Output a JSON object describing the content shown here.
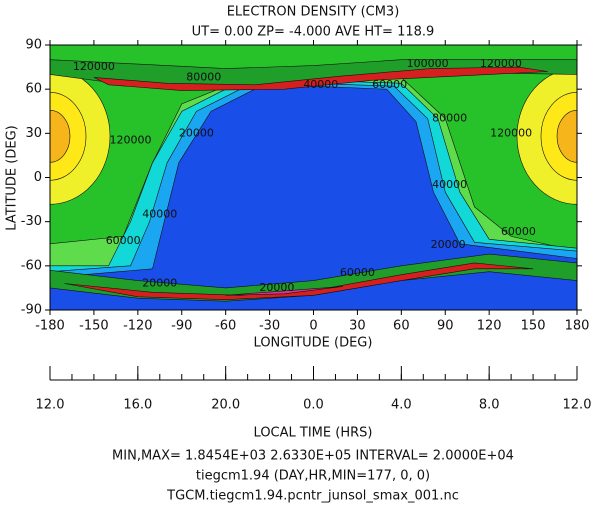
{
  "chart_data": {
    "type": "contour",
    "title": "ELECTRON DENSITY (CM3)",
    "subtitle": "UT= 0.00 ZP= -4.000 AVE HT= 118.9",
    "x_label": "LONGITUDE (DEG)",
    "y_label": "LATITUDE (DEG)",
    "xlim": [
      -180,
      180
    ],
    "ylim": [
      -90,
      90
    ],
    "xticks": [
      -180,
      -150,
      -120,
      -90,
      -60,
      -30,
      0,
      30,
      60,
      90,
      120,
      150,
      180
    ],
    "yticks": [
      -90,
      -60,
      -30,
      0,
      30,
      60,
      90
    ],
    "lt_label": "LOCAL TIME (HRS)",
    "lt_ticks": [
      {
        "value": -180,
        "label": "12.0"
      },
      {
        "value": -120,
        "label": "16.0"
      },
      {
        "value": -60,
        "label": "20.0"
      },
      {
        "value": 0,
        "label": "0.0"
      },
      {
        "value": 60,
        "label": "4.0"
      },
      {
        "value": 120,
        "label": "8.0"
      },
      {
        "value": 180,
        "label": "12.0"
      }
    ],
    "contour_labels": [
      {
        "value": 120000,
        "lon": -150,
        "lat": 75
      },
      {
        "value": 80000,
        "lon": -75,
        "lat": 68
      },
      {
        "value": 100000,
        "lon": 78,
        "lat": 77
      },
      {
        "value": 120000,
        "lon": 128,
        "lat": 77
      },
      {
        "value": 40000,
        "lon": 5,
        "lat": 63
      },
      {
        "value": 60000,
        "lon": 52,
        "lat": 63
      },
      {
        "value": 120000,
        "lon": -125,
        "lat": 25
      },
      {
        "value": 20000,
        "lon": -80,
        "lat": 30
      },
      {
        "value": 80000,
        "lon": 93,
        "lat": 40
      },
      {
        "value": 120000,
        "lon": 135,
        "lat": 30
      },
      {
        "value": 40000,
        "lon": -105,
        "lat": -25
      },
      {
        "value": 40000,
        "lon": 93,
        "lat": -5
      },
      {
        "value": 60000,
        "lon": -130,
        "lat": -43
      },
      {
        "value": 60000,
        "lon": 140,
        "lat": -37
      },
      {
        "value": 20000,
        "lon": 92,
        "lat": -46
      },
      {
        "value": 20000,
        "lon": -105,
        "lat": -72
      },
      {
        "value": 20000,
        "lon": -25,
        "lat": -75
      },
      {
        "value": 60000,
        "lon": 30,
        "lat": -65
      }
    ],
    "footer": [
      "MIN,MAX= 1.8454E+03  2.6330E+05 INTERVAL=  2.0000E+04",
      "tiegcm1.94 (DAY,HR,MIN=177, 0, 0)",
      "TGCM.tiegcm1.94.pcntr_junsol_smax_001.nc"
    ]
  }
}
